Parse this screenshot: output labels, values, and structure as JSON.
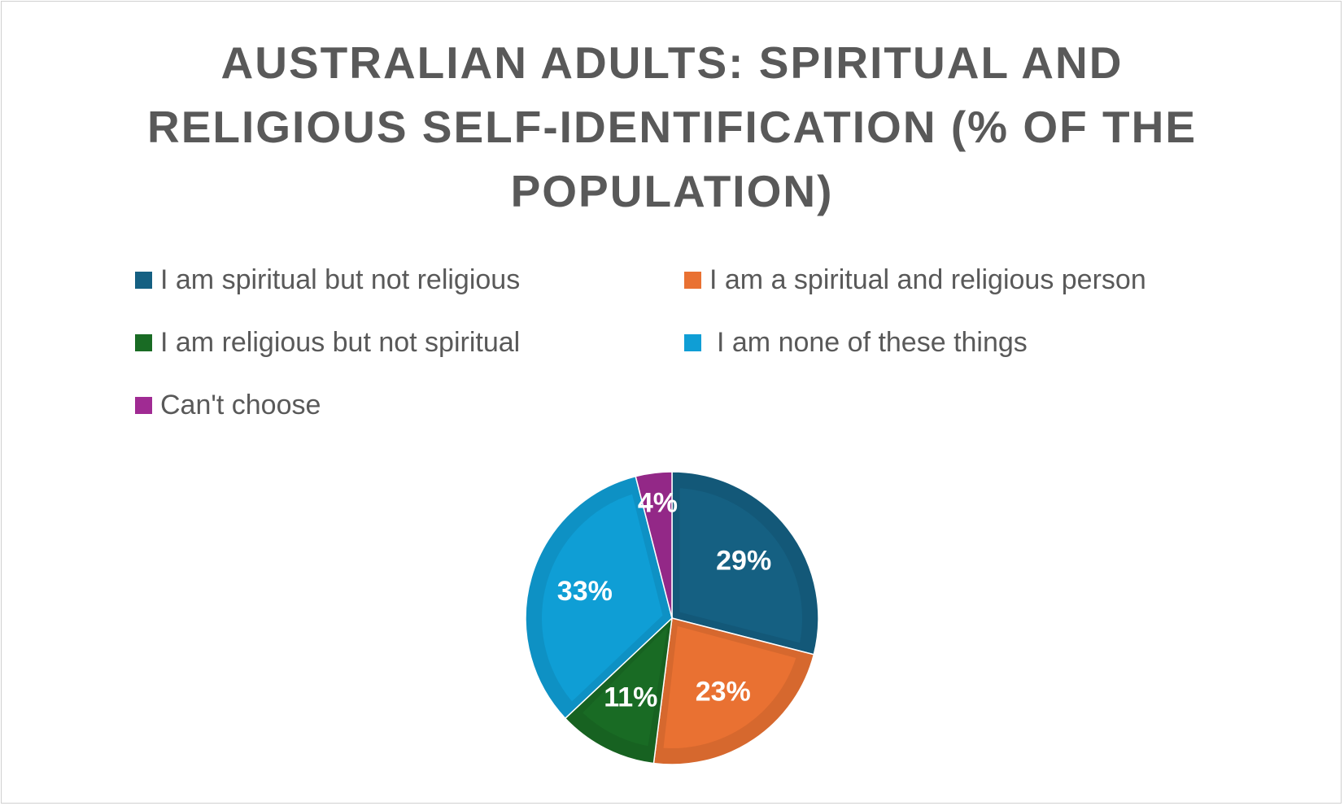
{
  "chart_data": {
    "type": "pie",
    "title": "AUSTRALIAN ADULTS: SPIRITUAL AND RELIGIOUS SELF-IDENTIFICATION (% OF THE POPULATION)",
    "categories": [
      "I am spiritual but not religious",
      "I am a spiritual and religious person",
      "I am religious but not spiritual",
      "I am none of these things",
      "Can't choose"
    ],
    "values": [
      29,
      23,
      11,
      33,
      4
    ],
    "data_labels": [
      "29%",
      "23%",
      "11%",
      "33%",
      "4%"
    ],
    "colors": [
      "#156082",
      "#E97132",
      "#196B24",
      "#0F9ED5",
      "#A02B93"
    ],
    "legend_placement": "top"
  }
}
